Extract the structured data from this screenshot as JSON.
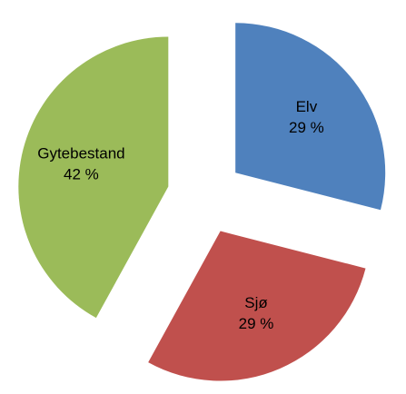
{
  "chart_data": {
    "type": "pie",
    "categories": [
      "Elv",
      "Sjø",
      "Gytebestand"
    ],
    "values": [
      29,
      29,
      42
    ],
    "value_labels": [
      "29 %",
      "29 %",
      "42 %"
    ],
    "colors": [
      "#4f81bd",
      "#c0504d",
      "#9bbb59"
    ]
  }
}
